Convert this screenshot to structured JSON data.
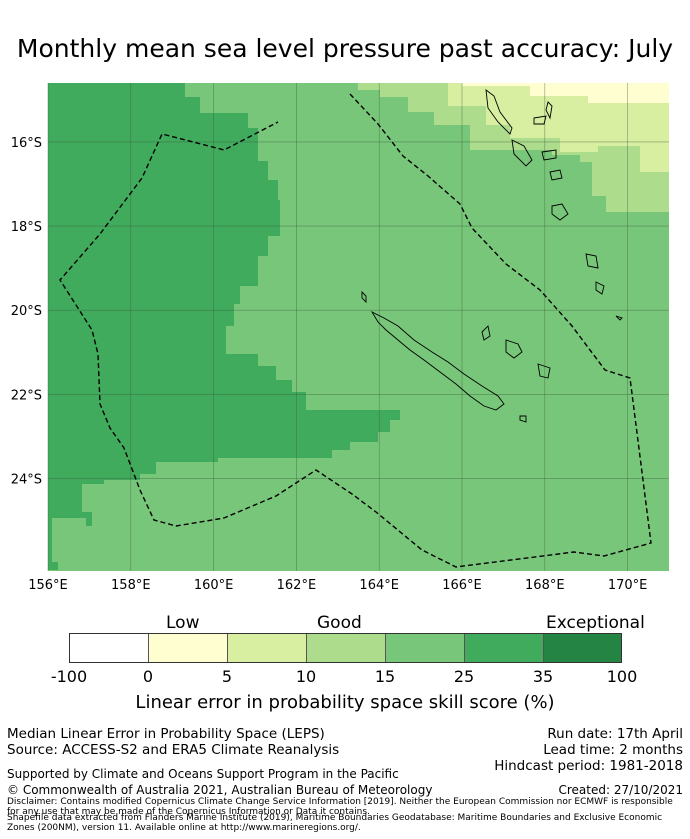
{
  "title": "Monthly mean sea level pressure past accuracy: July",
  "map": {
    "lon_ticks": [
      "156°E",
      "158°E",
      "160°E",
      "162°E",
      "164°E",
      "166°E",
      "168°E",
      "170°E"
    ],
    "lat_ticks": [
      "16°S",
      "18°S",
      "20°S",
      "22°S",
      "24°S"
    ],
    "extent": {
      "lon": [
        156,
        171
      ],
      "lat": [
        -26.2,
        -14.6
      ]
    },
    "grid": true,
    "boundary_style": "dashed"
  },
  "colorbar": {
    "categories": [
      "Low",
      "Good",
      "Exceptional"
    ],
    "ticks": [
      "-100",
      "0",
      "5",
      "10",
      "15",
      "25",
      "35",
      "100"
    ],
    "colors": [
      "#ffffff",
      "#fefed0",
      "#d8eea0",
      "#acdc8c",
      "#78c679",
      "#41ab5d",
      "#238443"
    ],
    "label": "Linear error in probability space skill score (%)"
  },
  "footer": {
    "line1": "Median Linear Error in Probability Space (LEPS)",
    "line2": "Source: ACCESS-S2 and ERA5 Climate Reanalysis",
    "run_date": "Run date: 17th April",
    "lead_time": "Lead time: 2 months",
    "hindcast": "Hindcast period: 1981-2018",
    "support": "Supported by Climate and Oceans Support Program in the Pacific",
    "copyright": "© Commonwealth of Australia 2021, Australian Bureau of Meteorology",
    "created": "Created: 27/10/2021",
    "disclaimer": "Disclaimer: Contains modified Copernicus Climate Change Service Information [2019]. Neither the European Commission nor ECMWF is responsible for any use that may be made of the Copernicus Information or Data it contains.",
    "shapefile": "Shapefile data extracted from Flanders Marine Institute (2019), Maritime Boundaries Geodatabase: Maritime Boundaries and Exclusive Economic Zones (200NM), version 11. Available online at http://www.marineregions.org/."
  }
}
